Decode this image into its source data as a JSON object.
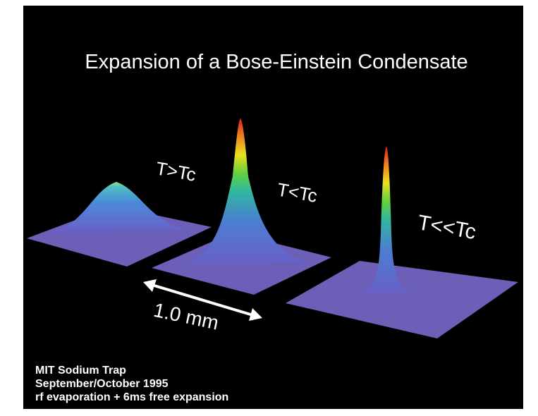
{
  "title": "Expansion of a Bose-Einstein Condensate",
  "labels": [
    "T>Tc",
    "T<Tc",
    "T<<Tc"
  ],
  "scale_label": "1.0 mm",
  "caption": [
    "MIT Sodium Trap",
    "September/October 1995",
    "rf evaporation + 6ms free expansion"
  ]
}
